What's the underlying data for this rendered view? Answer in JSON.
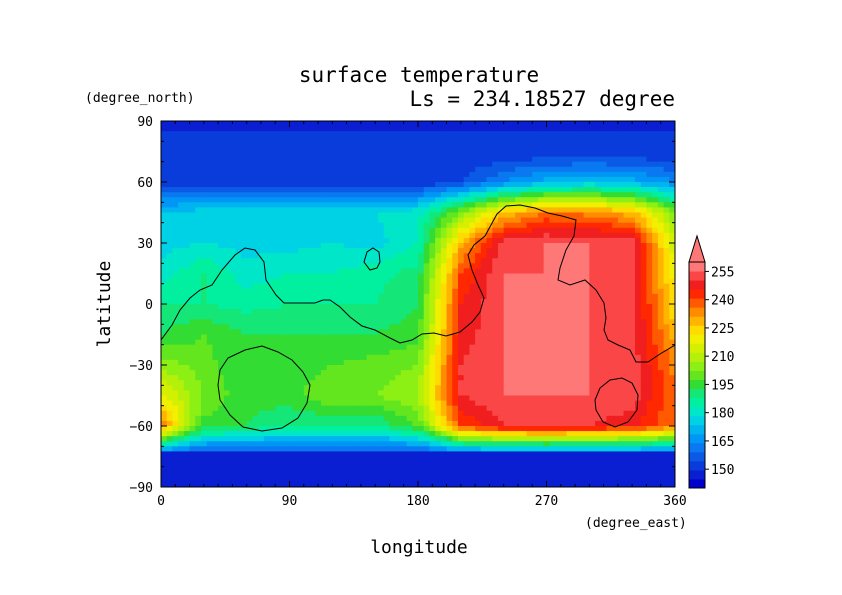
{
  "chart_data": {
    "type": "heatmap",
    "title": "surface temperature",
    "subtitle": "Ls = 234.18527 degree",
    "xlabel": "longitude",
    "ylabel": "latitude",
    "x_units": "(degree_east)",
    "y_units": "(degree_north)",
    "xlim": [
      0,
      360
    ],
    "ylim": [
      -90,
      90
    ],
    "x_ticks": [
      "0",
      "90",
      "180",
      "270",
      "360"
    ],
    "y_ticks": [
      "90",
      "60",
      "30",
      "0",
      "−30",
      "−60",
      "−90"
    ],
    "x_tick_values": [
      0,
      90,
      180,
      270,
      360
    ],
    "y_tick_values": [
      90,
      60,
      30,
      0,
      -30,
      -60,
      -90
    ],
    "colorbar": {
      "levels": [
        140,
        145,
        150,
        155,
        160,
        165,
        170,
        175,
        180,
        185,
        190,
        195,
        200,
        205,
        210,
        215,
        220,
        225,
        230,
        235,
        240,
        245,
        250,
        255,
        260
      ],
      "colors": [
        "#0000cd",
        "#0a1ed2",
        "#0a3cdc",
        "#0a5ae6",
        "#0a78f0",
        "#0096f5",
        "#00b4f0",
        "#00d2e6",
        "#00e6c8",
        "#00f0a0",
        "#14e678",
        "#32dc32",
        "#64e61e",
        "#8cf014",
        "#b4f00a",
        "#d2f000",
        "#f0f000",
        "#ffdc00",
        "#ffb400",
        "#ff8c00",
        "#ff5a00",
        "#ff2800",
        "#f01e1e",
        "#fa4646",
        "#ff7878"
      ],
      "labels": [
        "150",
        "165",
        "180",
        "195",
        "210",
        "225",
        "240",
        "255"
      ],
      "label_values": [
        150,
        165,
        180,
        195,
        210,
        225,
        240,
        255
      ]
    },
    "field": {
      "lon_step": 30,
      "lat_step": 15,
      "lats": [
        90,
        75,
        60,
        45,
        30,
        15,
        0,
        -15,
        -30,
        -45,
        -60,
        -75,
        -90
      ],
      "lons": [
        0,
        30,
        60,
        90,
        120,
        150,
        180,
        210,
        240,
        270,
        300,
        330,
        360
      ],
      "values": [
        [
          150,
          150,
          150,
          150,
          150,
          150,
          150,
          150,
          150,
          150,
          150,
          150,
          150
        ],
        [
          150,
          150,
          150,
          150,
          150,
          150,
          150,
          150,
          150,
          150,
          150,
          150,
          150
        ],
        [
          152,
          150,
          150,
          150,
          150,
          150,
          150,
          155,
          165,
          172,
          175,
          172,
          165
        ],
        [
          175,
          178,
          180,
          178,
          178,
          180,
          183,
          205,
          230,
          240,
          238,
          232,
          205
        ],
        [
          178,
          180,
          178,
          178,
          180,
          178,
          185,
          232,
          258,
          260,
          260,
          258,
          215
        ],
        [
          182,
          190,
          182,
          185,
          185,
          188,
          192,
          245,
          260,
          260,
          260,
          258,
          222
        ],
        [
          190,
          190,
          188,
          190,
          190,
          190,
          195,
          250,
          260,
          260,
          260,
          258,
          225
        ],
        [
          195,
          200,
          195,
          195,
          195,
          195,
          198,
          252,
          260,
          260,
          260,
          258,
          232
        ],
        [
          208,
          202,
          195,
          196,
          200,
          202,
          205,
          255,
          260,
          260,
          260,
          258,
          238
        ],
        [
          222,
          205,
          196,
          198,
          205,
          205,
          210,
          255,
          260,
          260,
          260,
          258,
          240
        ],
        [
          240,
          198,
          195,
          190,
          190,
          190,
          200,
          245,
          255,
          258,
          255,
          252,
          240
        ],
        [
          150,
          150,
          150,
          150,
          150,
          150,
          150,
          150,
          150,
          150,
          150,
          150,
          150
        ],
        [
          150,
          150,
          150,
          150,
          150,
          150,
          150,
          150,
          150,
          150,
          150,
          150,
          150
        ]
      ]
    },
    "land_range": [
      -72,
      85
    ],
    "topography_contours": "black line contours (no labels)"
  }
}
